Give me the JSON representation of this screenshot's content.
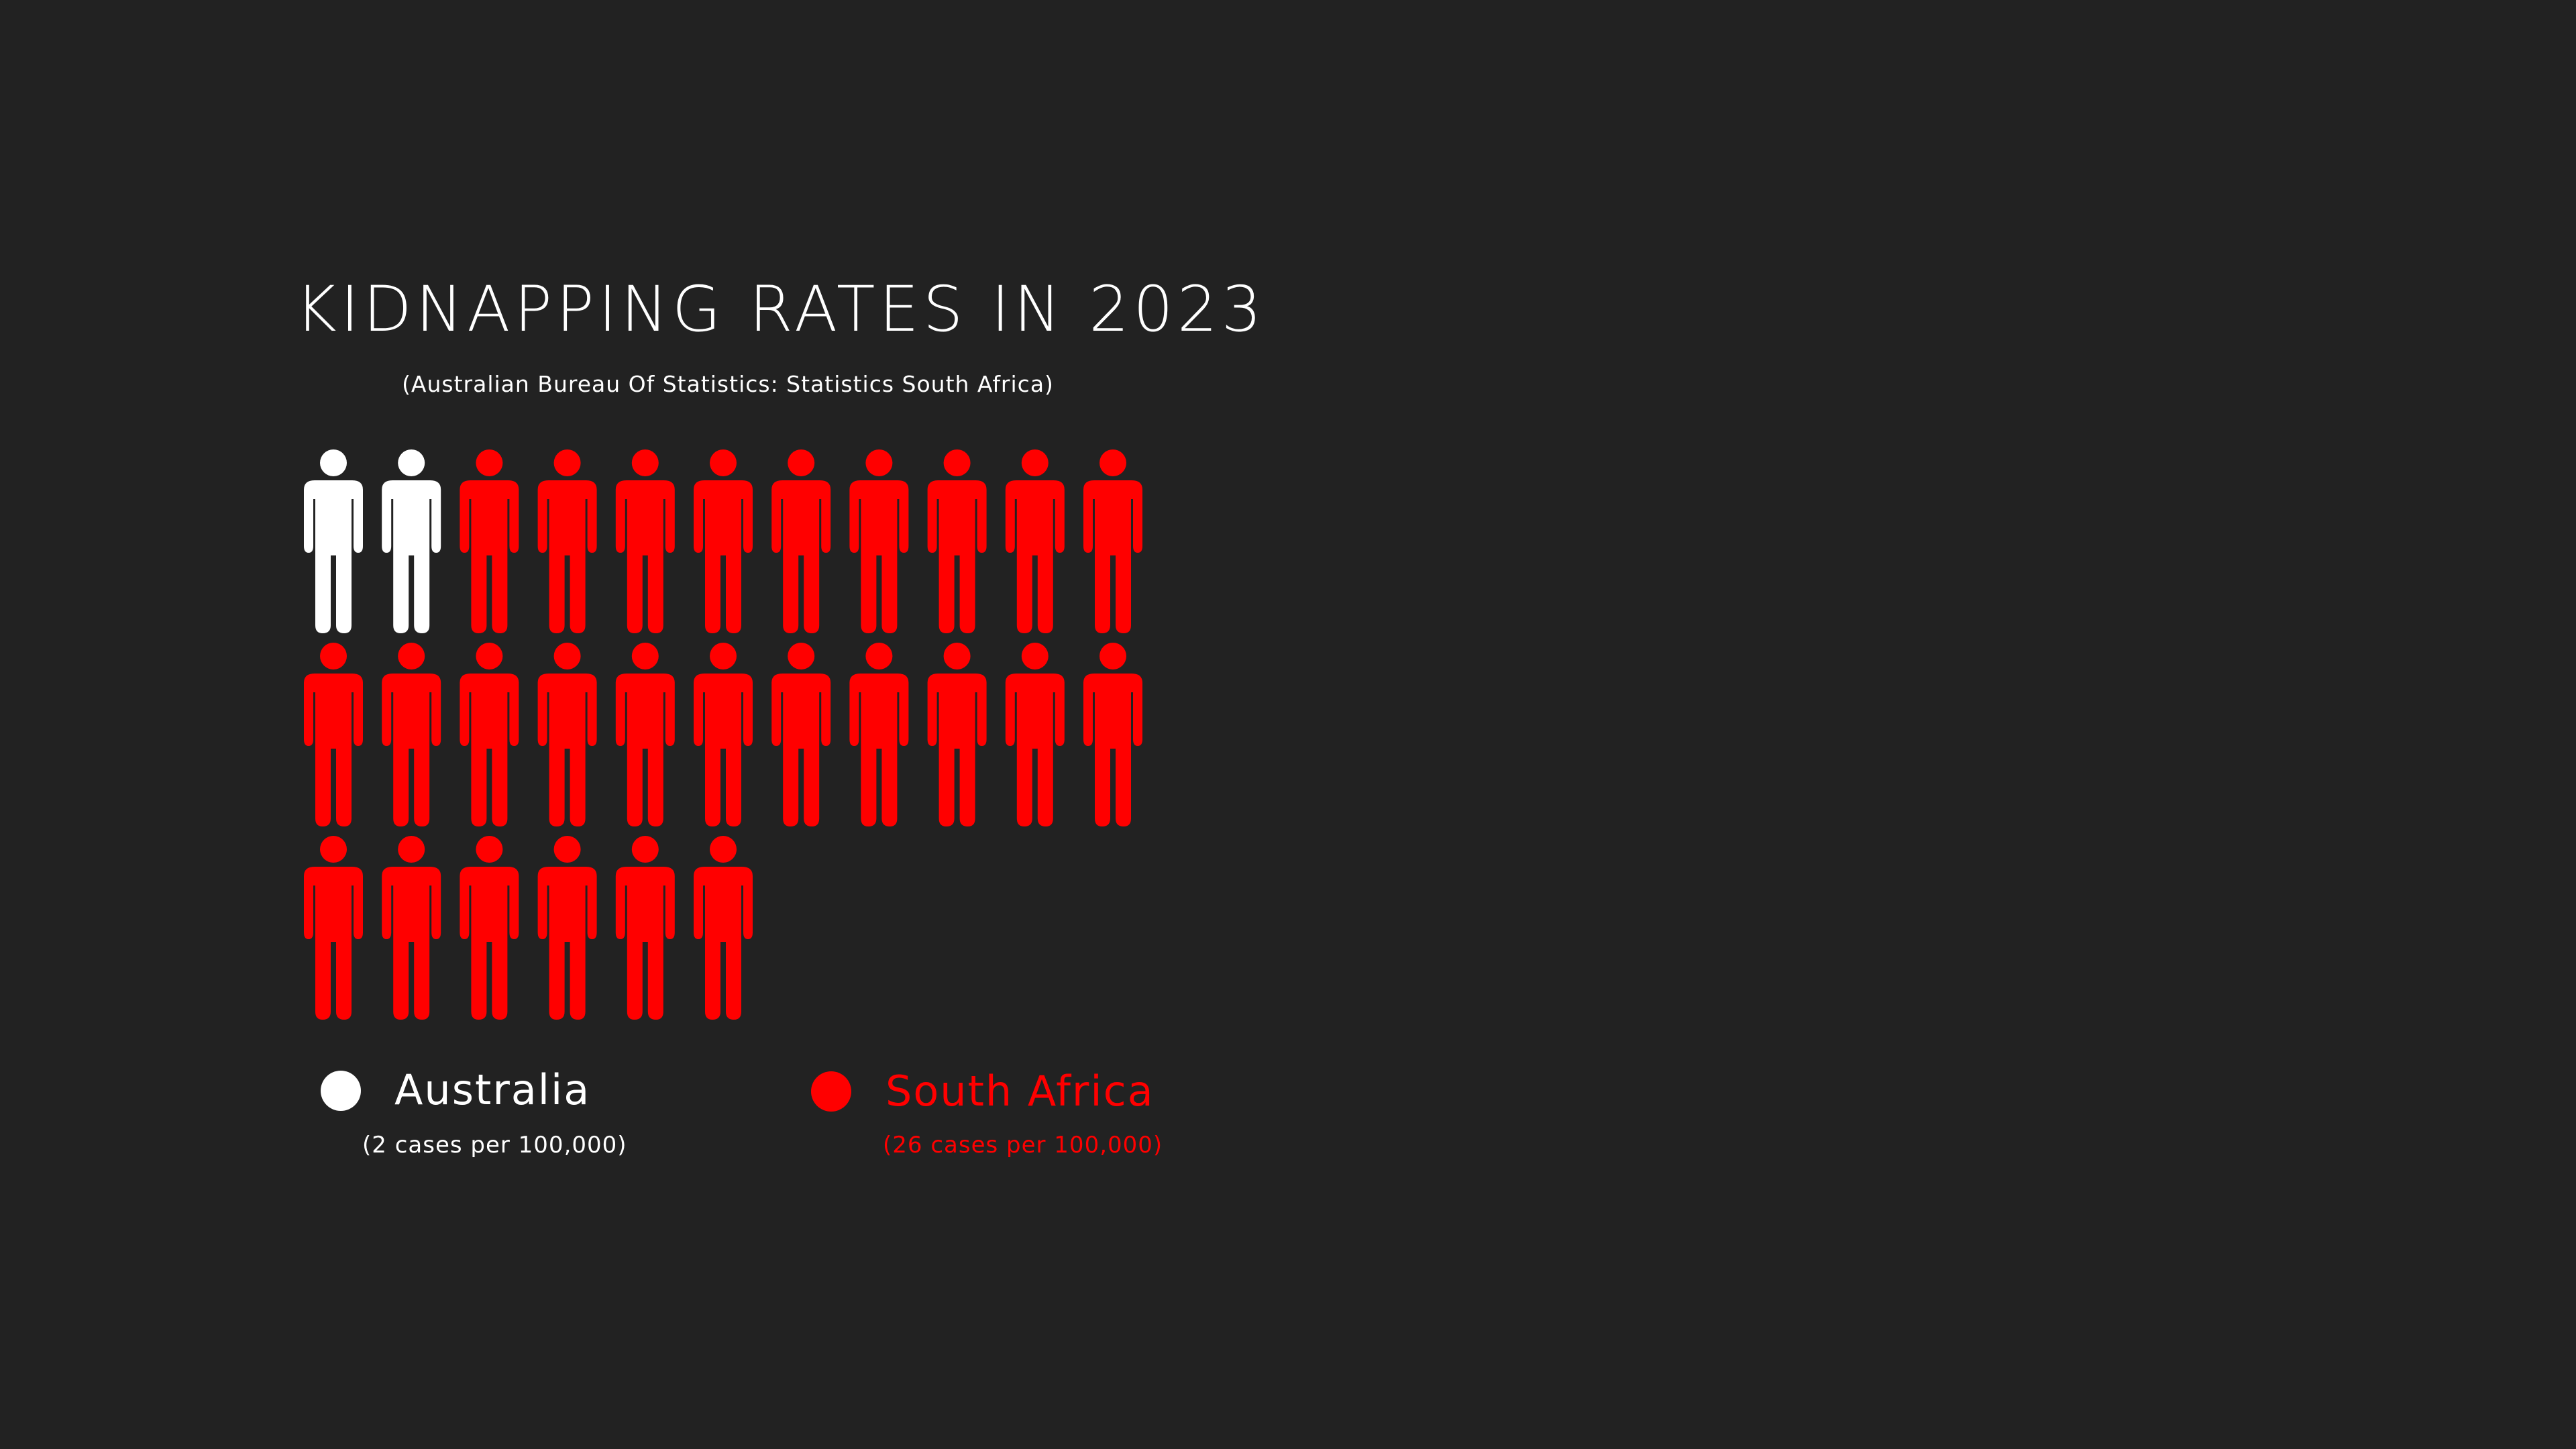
{
  "chart_data": {
    "type": "pictogram",
    "title": "KIDNAPPING RATES IN 2023",
    "subtitle": "(Australian Bureau Of Statistics: Statistics South Africa)",
    "icons_per_row": 11,
    "series": [
      {
        "name": "Australia",
        "value": 2,
        "note": "(2 cases per 100,000)",
        "color": "#ffffff"
      },
      {
        "name": "South Africa",
        "value": 26,
        "note": "(26 cases per 100,000)",
        "color": "#ff0000"
      }
    ],
    "unit": "cases per 100,000",
    "icon": "person-icon"
  },
  "colors": {
    "background": "#222222",
    "text": "#ffffff",
    "accent": "#ff0000"
  }
}
